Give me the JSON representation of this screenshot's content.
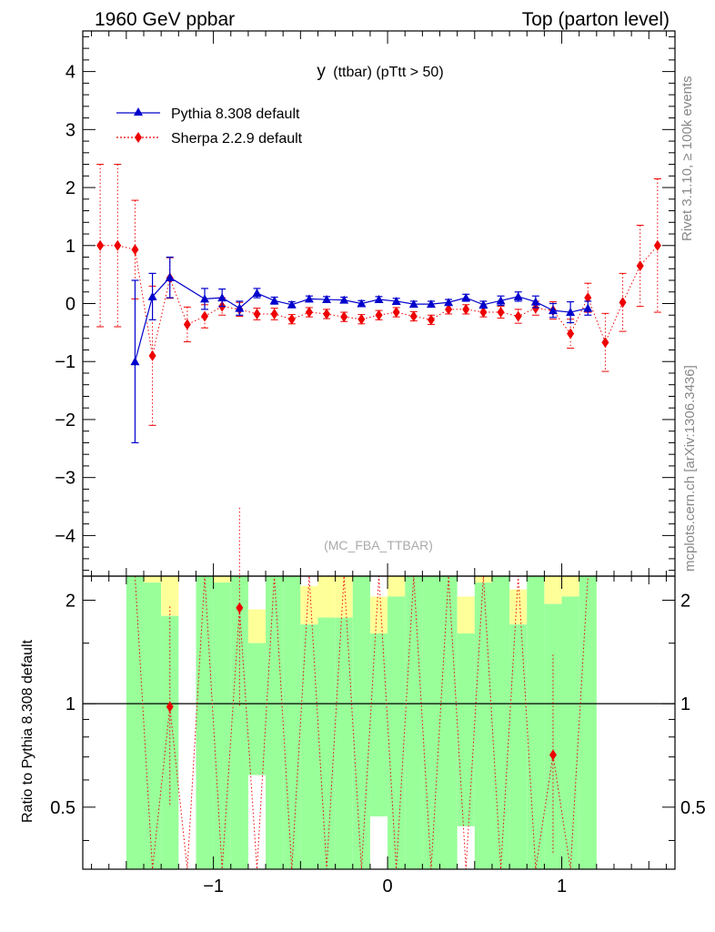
{
  "header": {
    "left": "1960 GeV ppbar",
    "right": "Top (parton level)"
  },
  "side": {
    "rivet": "Rivet 3.1.10, ≥ 100k events",
    "mcplots": "mcplots.cern.ch [arXiv:1306.3436]"
  },
  "colors": {
    "pythia": "#0000cc",
    "sherpa": "#ee0000",
    "band_green": "#99ff99",
    "band_yellow": "#ffff99"
  },
  "chart_data": {
    "type": "scatter",
    "title": "y (ttbar) (pTtt > 50)",
    "title_main": "y",
    "title_rest": "(ttbar) (pTtt > 50)",
    "analysis": "(MC_FBA_TTBAR)",
    "xlim": [
      -1.75,
      1.65
    ],
    "ylim": [
      -4.7,
      4.7
    ],
    "ratio_ylim": [
      0.33,
      2.35
    ],
    "ratio_ylabel": "Ratio to Pythia 8.308 default",
    "x_ticks": [
      -1,
      0,
      1
    ],
    "x_tick_labels": [
      "−1",
      "0",
      "1"
    ],
    "y_ticks": [
      -4,
      -3,
      -2,
      -1,
      0,
      1,
      2,
      3,
      4
    ],
    "y_tick_labels": [
      "−4",
      "−3",
      "−2",
      "−1",
      "0",
      "1",
      "2",
      "3",
      "4"
    ],
    "ratio_ticks": [
      0.5,
      1,
      2
    ],
    "ratio_tick_labels": [
      "0.5",
      "1",
      "2"
    ],
    "legend_position": "top-left",
    "series": [
      {
        "name": "Pythia 8.308 default",
        "marker": "triangle",
        "x": [
          -1.45,
          -1.35,
          -1.25,
          -1.05,
          -0.95,
          -0.85,
          -0.75,
          -0.65,
          -0.55,
          -0.45,
          -0.35,
          -0.25,
          -0.15,
          -0.05,
          0.05,
          0.15,
          0.25,
          0.35,
          0.45,
          0.55,
          0.65,
          0.75,
          0.85,
          0.95,
          1.05,
          1.15
        ],
        "y": [
          -1.0,
          0.12,
          0.45,
          0.08,
          0.1,
          -0.08,
          0.18,
          0.05,
          -0.02,
          0.08,
          0.07,
          0.06,
          0.0,
          0.07,
          0.04,
          -0.01,
          -0.01,
          0.02,
          0.1,
          -0.02,
          0.05,
          0.12,
          0.03,
          -0.12,
          -0.15,
          -0.08
        ],
        "err": [
          1.4,
          0.4,
          0.35,
          0.18,
          0.15,
          0.12,
          0.08,
          0.06,
          0.05,
          0.05,
          0.05,
          0.05,
          0.05,
          0.05,
          0.05,
          0.05,
          0.05,
          0.05,
          0.06,
          0.06,
          0.08,
          0.08,
          0.1,
          0.12,
          0.18,
          0.12
        ]
      },
      {
        "name": "Sherpa 2.2.9 default",
        "marker": "diamond",
        "x": [
          -1.65,
          -1.55,
          -1.45,
          -1.35,
          -1.25,
          -1.15,
          -1.05,
          -0.95,
          -0.85,
          -0.75,
          -0.65,
          -0.55,
          -0.45,
          -0.35,
          -0.25,
          -0.15,
          -0.05,
          0.05,
          0.15,
          0.25,
          0.35,
          0.45,
          0.55,
          0.65,
          0.75,
          0.85,
          0.95,
          1.05,
          1.15,
          1.25,
          1.35,
          1.45,
          1.55
        ],
        "y": [
          1.0,
          1.0,
          0.93,
          -0.9,
          0.44,
          -0.36,
          -0.22,
          -0.05,
          -0.1,
          -0.18,
          -0.18,
          -0.27,
          -0.15,
          -0.18,
          -0.23,
          -0.27,
          -0.2,
          -0.15,
          -0.22,
          -0.28,
          -0.1,
          -0.1,
          -0.15,
          -0.15,
          -0.22,
          -0.08,
          -0.12,
          -0.52,
          0.1,
          -0.67,
          0.02,
          0.65,
          1.0
        ],
        "err": [
          1.4,
          1.4,
          0.85,
          1.2,
          0.35,
          0.3,
          0.2,
          0.15,
          0.12,
          0.1,
          0.1,
          0.08,
          0.08,
          0.08,
          0.08,
          0.08,
          0.08,
          0.08,
          0.08,
          0.08,
          0.08,
          0.08,
          0.08,
          0.1,
          0.12,
          0.12,
          0.15,
          0.25,
          0.25,
          0.5,
          0.5,
          0.7,
          1.15
        ]
      }
    ],
    "ratio": {
      "reference_line": 1,
      "points": [
        {
          "x": -1.25,
          "y": 0.98
        },
        {
          "x": -0.85,
          "y": 1.9
        },
        {
          "x": 0.95,
          "y": 0.71
        }
      ],
      "bands": [
        {
          "x0": -1.5,
          "x1": -1.4,
          "green": [
            0.33,
            2.35
          ],
          "yellow": [
            2.25,
            2.35
          ]
        },
        {
          "x0": -1.4,
          "x1": -1.3,
          "green": [
            0.33,
            2.25
          ],
          "yellow": [
            2.25,
            2.35
          ]
        },
        {
          "x0": -1.3,
          "x1": -1.2,
          "green": [
            0.33,
            1.8
          ],
          "yellow": [
            1.8,
            2.35
          ]
        },
        {
          "x0": -1.1,
          "x1": -1.0,
          "green": [
            0.33,
            2.35
          ],
          "yellow": [
            2.25,
            2.35
          ]
        },
        {
          "x0": -1.0,
          "x1": -0.9,
          "green": [
            0.33,
            2.25
          ],
          "yellow": [
            2.25,
            2.35
          ]
        },
        {
          "x0": -0.9,
          "x1": -0.8,
          "green": [
            0.33,
            2.35
          ],
          "yellow": [
            2.25,
            2.35
          ]
        },
        {
          "x0": -0.8,
          "x1": -0.7,
          "green": [
            0.62,
            1.5
          ],
          "yellow": [
            1.5,
            1.88
          ]
        },
        {
          "x0": -0.7,
          "x1": -0.6,
          "green": [
            0.33,
            2.35
          ],
          "yellow": [
            2.25,
            2.35
          ]
        },
        {
          "x0": -0.6,
          "x1": -0.5,
          "green": [
            0.33,
            2.35
          ],
          "yellow": [
            2.25,
            2.35
          ]
        },
        {
          "x0": -0.5,
          "x1": -0.4,
          "green": [
            0.33,
            1.7
          ],
          "yellow": [
            1.7,
            2.2
          ]
        },
        {
          "x0": -0.4,
          "x1": -0.3,
          "green": [
            0.33,
            1.78
          ],
          "yellow": [
            1.78,
            2.35
          ]
        },
        {
          "x0": -0.3,
          "x1": -0.2,
          "green": [
            0.33,
            1.78
          ],
          "yellow": [
            1.78,
            2.35
          ]
        },
        {
          "x0": -0.2,
          "x1": -0.1,
          "green": [
            0.33,
            2.35
          ],
          "yellow": [
            2.25,
            2.35
          ]
        },
        {
          "x0": -0.1,
          "x1": 0.0,
          "green": [
            0.47,
            1.6
          ],
          "yellow": [
            1.6,
            2.05
          ]
        },
        {
          "x0": 0.0,
          "x1": 0.1,
          "green": [
            0.33,
            2.05
          ],
          "yellow": [
            2.05,
            2.35
          ]
        },
        {
          "x0": 0.1,
          "x1": 0.2,
          "green": [
            0.33,
            2.35
          ],
          "yellow": [
            2.25,
            2.35
          ]
        },
        {
          "x0": 0.2,
          "x1": 0.3,
          "green": [
            0.33,
            2.35
          ],
          "yellow": [
            2.25,
            2.35
          ]
        },
        {
          "x0": 0.3,
          "x1": 0.4,
          "green": [
            0.33,
            2.35
          ],
          "yellow": [
            2.25,
            2.35
          ]
        },
        {
          "x0": 0.4,
          "x1": 0.5,
          "green": [
            0.44,
            1.6
          ],
          "yellow": [
            1.6,
            2.05
          ]
        },
        {
          "x0": 0.5,
          "x1": 0.6,
          "green": [
            0.33,
            2.25
          ],
          "yellow": [
            2.25,
            2.35
          ]
        },
        {
          "x0": 0.6,
          "x1": 0.7,
          "green": [
            0.33,
            2.35
          ],
          "yellow": [
            2.25,
            2.35
          ]
        },
        {
          "x0": 0.7,
          "x1": 0.8,
          "green": [
            0.33,
            1.7
          ],
          "yellow": [
            1.7,
            2.15
          ]
        },
        {
          "x0": 0.8,
          "x1": 0.9,
          "green": [
            0.33,
            2.35
          ],
          "yellow": [
            2.25,
            2.35
          ]
        },
        {
          "x0": 0.9,
          "x1": 1.0,
          "green": [
            0.33,
            1.95
          ],
          "yellow": [
            1.95,
            2.35
          ]
        },
        {
          "x0": 1.0,
          "x1": 1.1,
          "green": [
            0.33,
            2.05
          ],
          "yellow": [
            2.05,
            2.35
          ]
        },
        {
          "x0": 1.1,
          "x1": 1.2,
          "green": [
            0.33,
            2.35
          ],
          "yellow": [
            2.25,
            2.35
          ]
        }
      ]
    }
  }
}
